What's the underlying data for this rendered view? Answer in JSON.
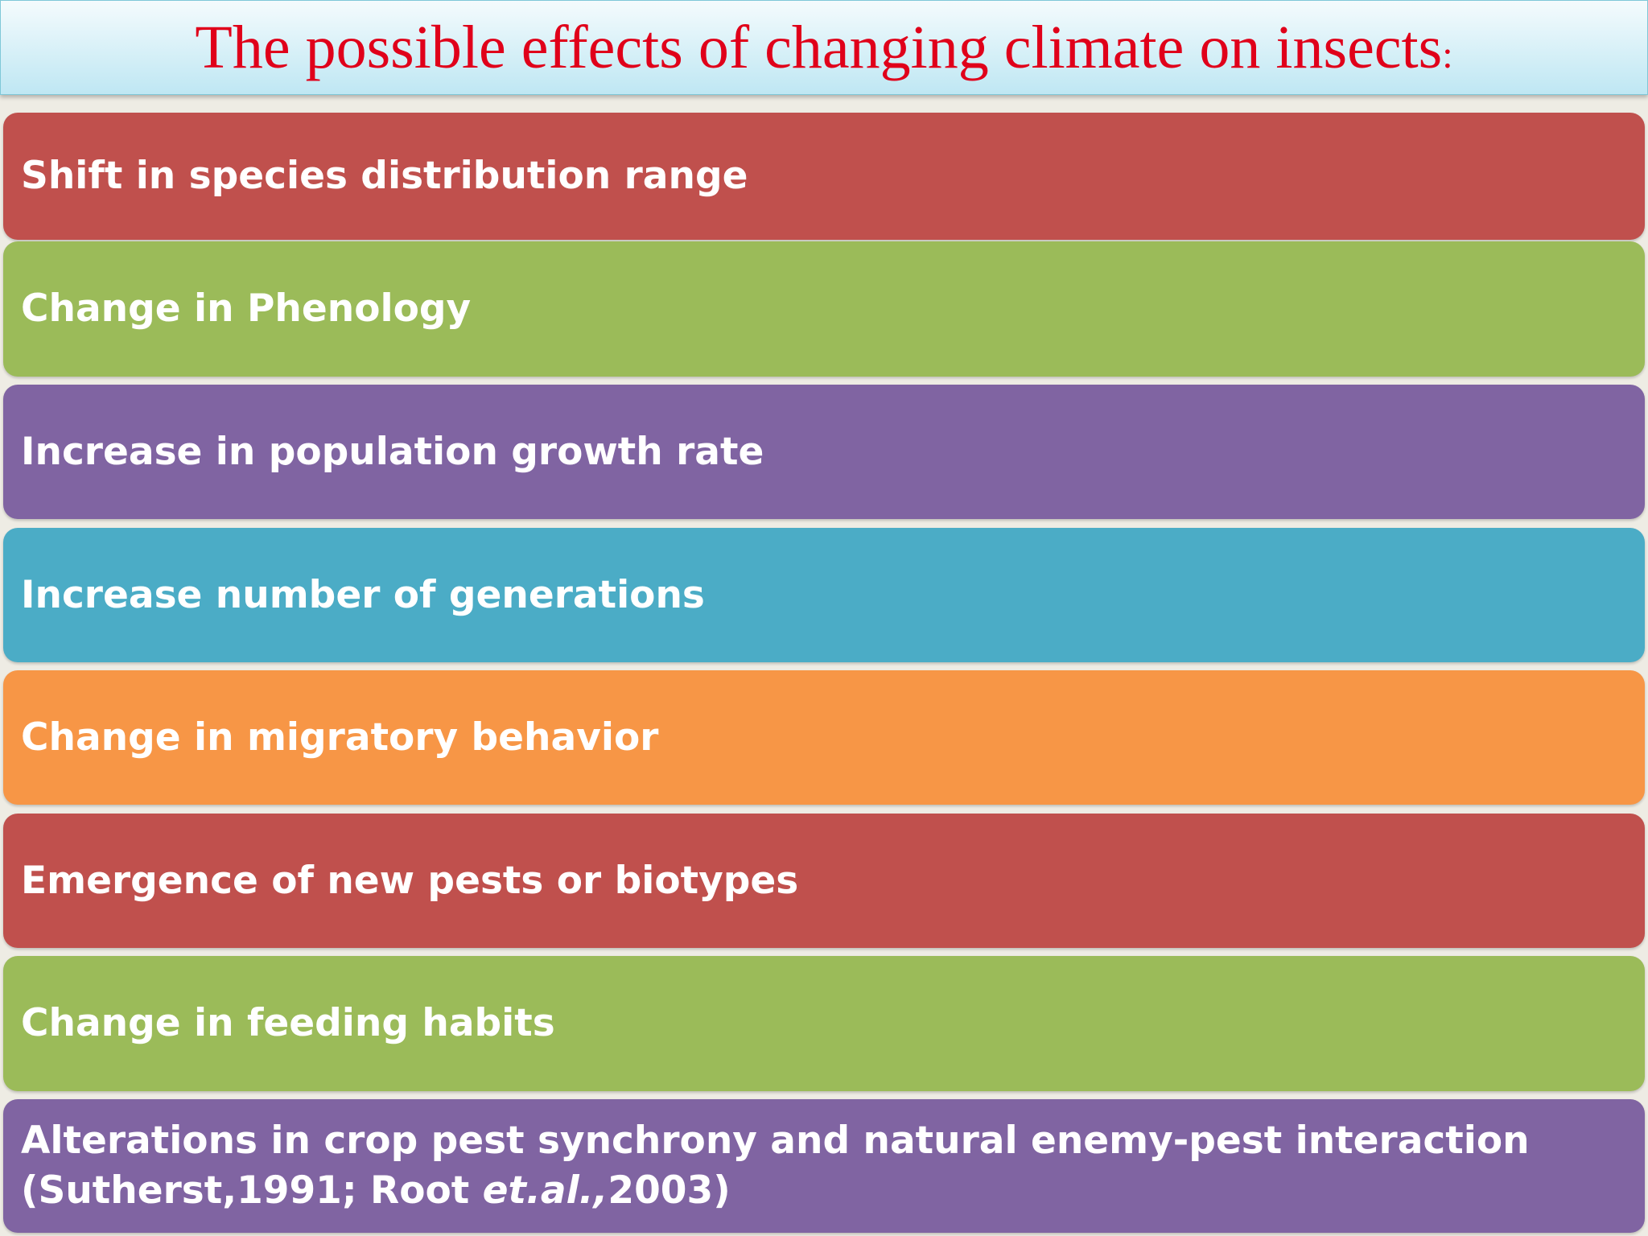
{
  "header": {
    "title": "The possible effects of changing climate on insects",
    "title_colon": ":"
  },
  "items": [
    {
      "text": "Shift in species distribution range",
      "color": "#c0504d"
    },
    {
      "text": "Change in Phenology",
      "color": "#9bbb59"
    },
    {
      "text": "Increase in population growth rate",
      "color": "#8064a2"
    },
    {
      "text": "Increase number of generations",
      "color": "#4bacc6"
    },
    {
      "text": "Change in migratory behavior",
      "color": "#f79646"
    },
    {
      "text": "Emergence of new pests or biotypes",
      "color": "#c0504d"
    },
    {
      "text": "Change in feeding habits",
      "color": "#9bbb59"
    },
    {
      "text": "Alterations in crop pest synchrony and natural enemy-pest interaction",
      "color": "#8064a2",
      "citation": [
        "(Sutherst,1991; Root",
        "et.al.,",
        "2003)"
      ]
    }
  ]
}
